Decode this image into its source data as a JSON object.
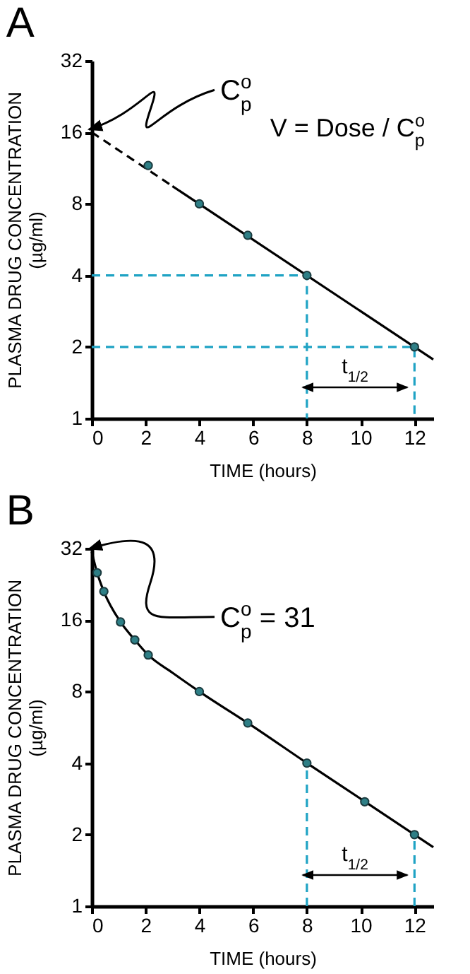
{
  "chart_data": [
    {
      "type": "line",
      "title": "A",
      "xlabel": "TIME (hours)",
      "ylabel": "PLASMA DRUG CONCENTRATION\n(µg/ml)",
      "log": "y",
      "xlim": [
        0,
        12.7
      ],
      "ylim": [
        1,
        32
      ],
      "xticks": [
        0,
        2,
        4,
        6,
        8,
        10,
        12
      ],
      "yticks": [
        1,
        2,
        4,
        8,
        16,
        32
      ],
      "grid": false,
      "legend": false,
      "series": [
        {
          "type": "line",
          "x": [
            0,
            3
          ],
          "values": [
            16,
            9.5
          ],
          "color": "#000000",
          "line_style": "dashed"
        },
        {
          "type": "line",
          "x": [
            3,
            12.7
          ],
          "values": [
            9.5,
            1.77
          ],
          "color": "#000000",
          "line_style": "solid"
        },
        {
          "type": "line",
          "x": [
            0,
            8,
            8
          ],
          "values": [
            4,
            4,
            1
          ],
          "color": "#1fa3c4",
          "line_style": "dashed"
        },
        {
          "type": "line",
          "x": [
            0,
            12,
            12
          ],
          "values": [
            2,
            2,
            1
          ],
          "color": "#1fa3c4",
          "line_style": "dashed"
        },
        {
          "type": "scatter",
          "x": [
            2.1,
            4,
            5.8,
            8,
            12
          ],
          "values": [
            11.6,
            8,
            5.9,
            4,
            2
          ],
          "color": "#2e7f86",
          "marker": "circle"
        }
      ],
      "annotations": [
        {
          "text": "C$_{p}$$^{o}$",
          "x": 0,
          "y": 16
        },
        "V = Dose / C$_{p}$$^{o}$",
        "t$_{1/2}$"
      ]
    },
    {
      "type": "line",
      "title": "B",
      "xlabel": "TIME (hours)",
      "ylabel": "PLASMA DRUG CONCENTRATION\n(µg/ml)",
      "log": "y",
      "xlim": [
        0,
        12.7
      ],
      "ylim": [
        1,
        32
      ],
      "xticks": [
        0,
        2,
        4,
        6,
        8,
        10,
        12
      ],
      "yticks": [
        1,
        2,
        4,
        8,
        16,
        32
      ],
      "grid": false,
      "legend": false,
      "series": [
        {
          "type": "line",
          "x": [
            0,
            0.2,
            0.45,
            1.07,
            1.6,
            2.1,
            3,
            4,
            6,
            8,
            10,
            12,
            12.7
          ],
          "values": [
            31,
            25.3,
            21.1,
            15.7,
            13.2,
            11.4,
            9.6,
            8,
            5.7,
            4,
            2.83,
            2,
            1.77
          ],
          "color": "#000000",
          "line_style": "solid"
        },
        {
          "type": "line",
          "x": [
            8,
            8
          ],
          "values": [
            1,
            4
          ],
          "color": "#1fa3c4",
          "line_style": "dashed"
        },
        {
          "type": "line",
          "x": [
            12,
            12
          ],
          "values": [
            1,
            2
          ],
          "color": "#1fa3c4",
          "line_style": "dashed"
        },
        {
          "type": "scatter",
          "x": [
            0.2,
            0.45,
            1.07,
            1.6,
            2.1,
            4,
            5.8,
            8,
            10.15,
            12
          ],
          "values": [
            25.3,
            21.1,
            15.7,
            13.2,
            11.4,
            8,
            5.9,
            4,
            2.75,
            2
          ],
          "color": "#2e7f86",
          "marker": "circle"
        }
      ],
      "annotations": [
        {
          "text": "C$_{p}$$^{o}$ = 31",
          "x": 0,
          "y": 31
        },
        "t$_{1/2}$"
      ]
    }
  ]
}
